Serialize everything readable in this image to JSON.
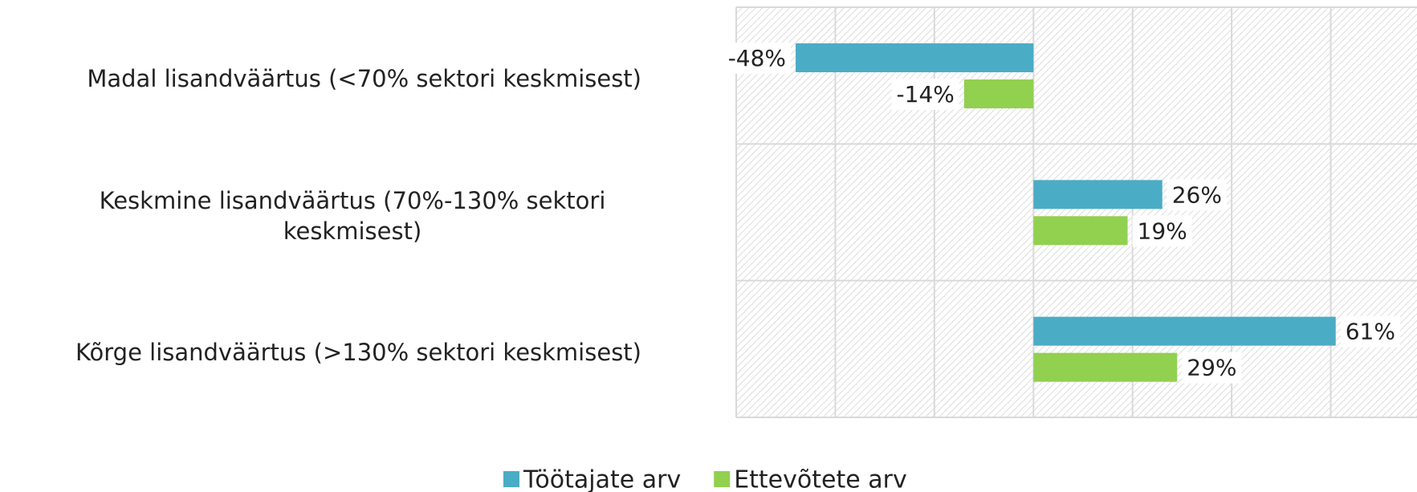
{
  "chart_data": {
    "type": "barh",
    "categories": [
      "Madal lisandväärtus (<70% sektori keskmisest)",
      "Keskmine lisandväärtus (70%-130% sektori keskmisest)",
      "Kõrge lisandväärtus (>130% sektori keskmisest)"
    ],
    "series": [
      {
        "name": "Töötajate arv",
        "color": "#4bacc6",
        "values": [
          -48,
          26,
          61
        ],
        "value_labels": [
          "-48%",
          "26%",
          "61%"
        ]
      },
      {
        "name": "Ettevõtete arv",
        "color": "#92d050",
        "values": [
          -14,
          19,
          29
        ],
        "value_labels": [
          "-14%",
          "19%",
          "29%"
        ]
      }
    ],
    "xlim": [
      -60,
      80
    ],
    "xticks": [
      -60,
      -40,
      -20,
      0,
      20,
      40,
      60,
      80
    ],
    "grid": true,
    "legend": "bottom"
  }
}
